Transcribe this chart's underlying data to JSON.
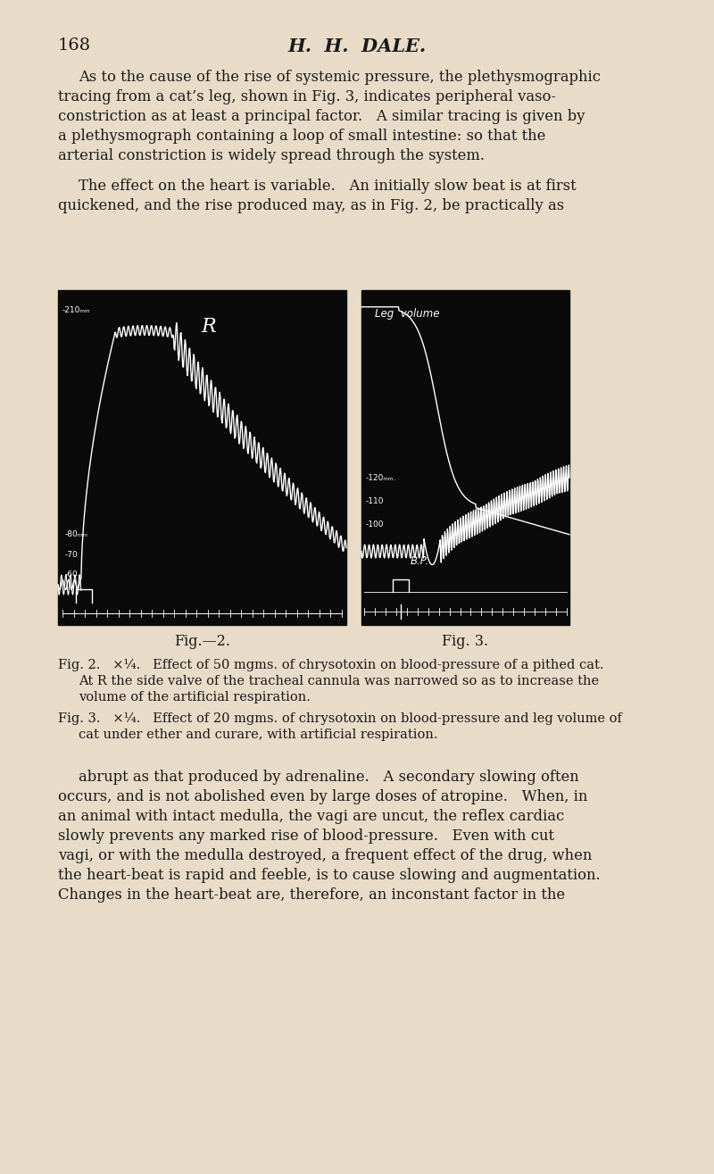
{
  "bg_color": "#e8dcc8",
  "page_width": 8.0,
  "page_height": 13.15,
  "dpi": 100,
  "header_page_num": "168",
  "header_title": "H.  H.  DALE.",
  "text_color": "#1a1a1a",
  "fig2_caption": "Fig.—2.",
  "fig3_caption": "Fig. 3.",
  "fig2_desc1": "Fig. 2.   ×¼.   Effect of 50 mgms. of chrysotoxin on blood-pressure of a pithed cat.",
  "fig2_desc2": "At R the side valve of the tracheal cannula was narrowed so as to increase the",
  "fig2_desc3": "volume of the artificial respiration.",
  "fig3_desc1": "Fig. 3.   ×¼.   Effect of 20 mgms. of chrysotoxin on blood-pressure and leg volume of",
  "fig3_desc2": "cat under ether and curare, with artificial respiration.",
  "para1_lines": [
    "As to the cause of the rise of systemic pressure, the plethysmographic",
    "tracing from a cat’s leg, shown in Fig. 3, indicates peripheral vaso-",
    "constriction as at least a principal factor.   A similar tracing is given by",
    "a plethysmograph containing a loop of small intestine: so that the",
    "arterial constriction is widely spread through the system."
  ],
  "para2_lines": [
    "The effect on the heart is variable.   An initially slow beat is at first",
    "quickened, and the rise produced may, as in Fig. 2, be practically as"
  ],
  "para3_lines": [
    "abrupt as that produced by adrenaline.   A secondary slowing often",
    "occurs, and is not abolished even by large doses of atropine.   When, in",
    "an animal with intact medulla, the vagi are uncut, the reflex cardiac",
    "slowly prevents any marked rise of blood-pressure.   Even with cut",
    "vagi, or with the medulla destroyed, a frequent effect of the drug, when",
    "the heart-beat is rapid and feeble, is to cause slowing and augmentation.",
    "Changes in the heart-beat are, therefore, an inconstant factor in the"
  ]
}
